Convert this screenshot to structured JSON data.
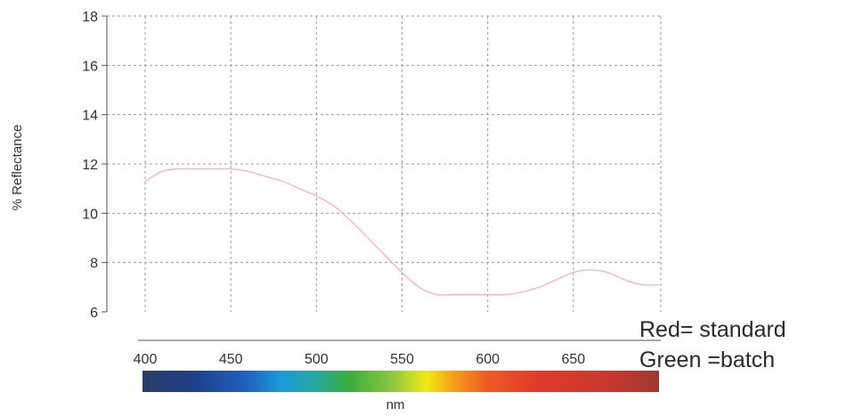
{
  "chart_data": {
    "type": "line",
    "title": "",
    "xlabel": "nm",
    "ylabel": "% Reflectance",
    "xlim": [
      400,
      700
    ],
    "ylim": [
      6,
      18
    ],
    "x_ticks": [
      "400",
      "450",
      "500",
      "550",
      "600",
      "650"
    ],
    "y_ticks": [
      "6",
      "8",
      "10",
      "12",
      "14",
      "16",
      "18"
    ],
    "grid": true,
    "series": [
      {
        "name": "standard",
        "color": "#f4b7b7",
        "x": [
          400,
          410,
          420,
          430,
          440,
          450,
          460,
          470,
          480,
          490,
          500,
          510,
          520,
          530,
          540,
          550,
          560,
          570,
          580,
          590,
          600,
          610,
          620,
          630,
          640,
          650,
          660,
          670,
          680,
          690,
          700
        ],
        "y": [
          11.3,
          11.7,
          11.8,
          11.8,
          11.8,
          11.8,
          11.7,
          11.5,
          11.3,
          11.0,
          10.7,
          10.3,
          9.7,
          9.0,
          8.3,
          7.6,
          7.0,
          6.7,
          6.7,
          6.7,
          6.7,
          6.7,
          6.8,
          7.0,
          7.3,
          7.6,
          7.7,
          7.6,
          7.3,
          7.1,
          7.1
        ]
      }
    ],
    "spectrum_bar": {
      "from_nm": 400,
      "to_nm": 700,
      "stops": [
        {
          "nm": 400,
          "color": "#2a3f66"
        },
        {
          "nm": 430,
          "color": "#1f3f8a"
        },
        {
          "nm": 460,
          "color": "#2060c0"
        },
        {
          "nm": 480,
          "color": "#1a9ad8"
        },
        {
          "nm": 500,
          "color": "#27a8a0"
        },
        {
          "nm": 520,
          "color": "#3aae3a"
        },
        {
          "nm": 545,
          "color": "#8cc63f"
        },
        {
          "nm": 565,
          "color": "#f2ea12"
        },
        {
          "nm": 580,
          "color": "#f7a11a"
        },
        {
          "nm": 600,
          "color": "#ef5a24"
        },
        {
          "nm": 630,
          "color": "#e03b2b"
        },
        {
          "nm": 670,
          "color": "#c8382e"
        },
        {
          "nm": 700,
          "color": "#9e3a32"
        }
      ]
    }
  },
  "annotations": {
    "red_note": "Red= standard",
    "green_note": "Green =batch"
  }
}
